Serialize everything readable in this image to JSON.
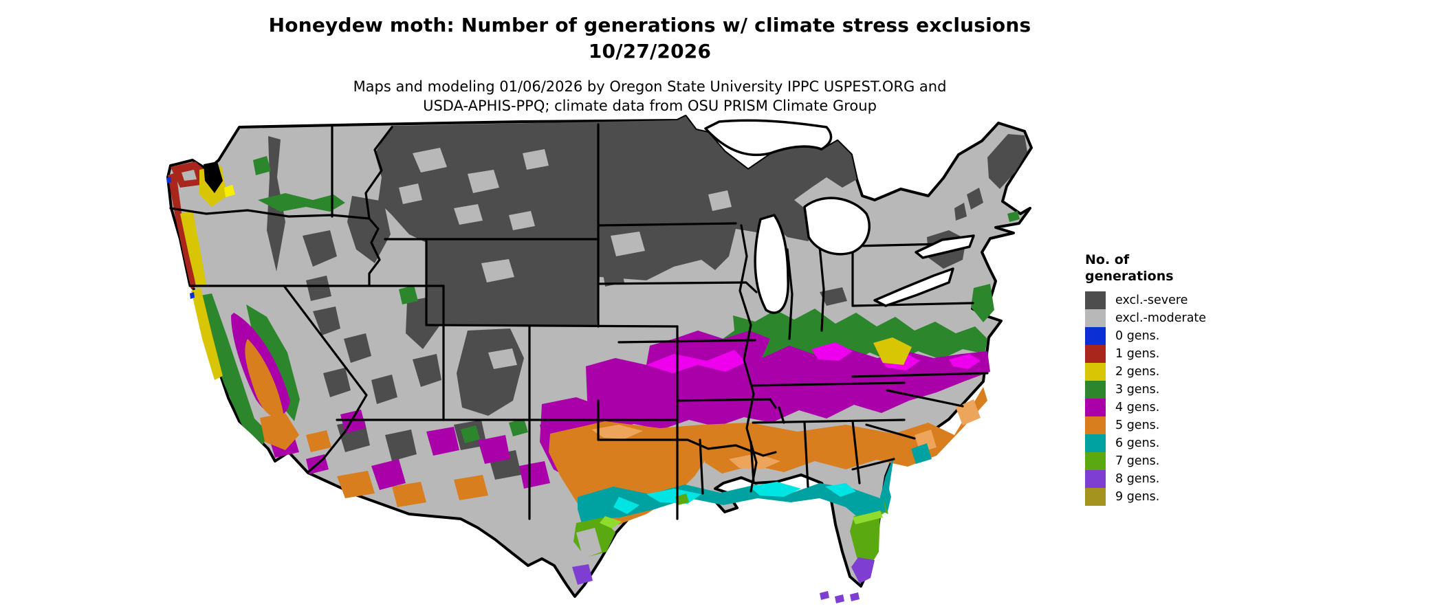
{
  "header": {
    "title_line1": "Honeydew moth: Number of generations w/ climate stress exclusions",
    "title_line2": "10/27/2026",
    "subtitle_line1": "Maps and modeling 01/06/2026 by Oregon State University IPPC USPEST.ORG and",
    "subtitle_line2": "USDA-APHIS-PPQ; climate data from OSU PRISM Climate Group"
  },
  "legend": {
    "title_line1": "No. of",
    "title_line2": "generations",
    "items": [
      {
        "label": "excl.-severe",
        "color": "#4d4d4d"
      },
      {
        "label": "excl.-moderate",
        "color": "#b8b8b8"
      },
      {
        "label": "0 gens.",
        "color": "#0a2fd4"
      },
      {
        "label": "1 gens.",
        "color": "#a8261b"
      },
      {
        "label": "2 gens.",
        "color": "#d8c504"
      },
      {
        "label": "3 gens.",
        "color": "#2c862c"
      },
      {
        "label": "4 gens.",
        "color": "#aa00aa"
      },
      {
        "label": "5 gens.",
        "color": "#d87e1f"
      },
      {
        "label": "6 gens.",
        "color": "#00a1a1"
      },
      {
        "label": "7 gens.",
        "color": "#5ba910"
      },
      {
        "label": "8 gens.",
        "color": "#7e3ed2"
      },
      {
        "label": "9 gens.",
        "color": "#a4931f"
      }
    ]
  }
}
